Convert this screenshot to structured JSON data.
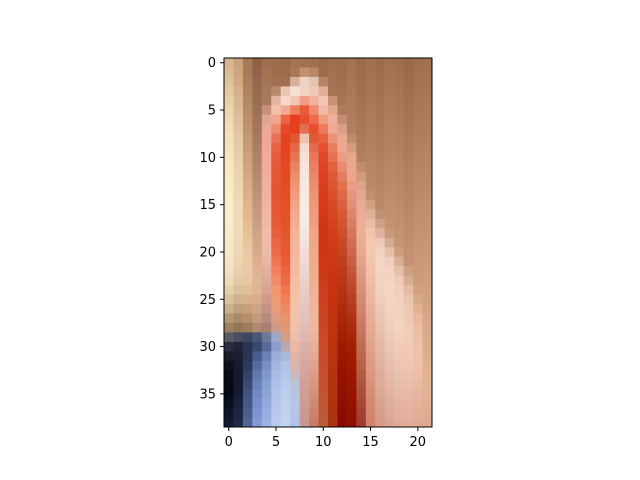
{
  "figure": {
    "background": "#ffffff"
  },
  "chart_data": {
    "type": "heatmap",
    "subtype": "image",
    "title": "",
    "xlabel": "",
    "ylabel": "",
    "x_ticks": [
      0,
      5,
      10,
      15,
      20
    ],
    "y_ticks": [
      0,
      5,
      10,
      15,
      20,
      25,
      30,
      35
    ],
    "xlim": [
      -0.5,
      21.5
    ],
    "ylim": [
      38.5,
      -0.5
    ],
    "y_axis_inverted": true,
    "image_columns": 22,
    "image_rows": 39,
    "pixel_rows_rgb": [
      [
        "#d9b690",
        "#cba27a",
        "#a97a56",
        "#8f6244",
        "#a0704e",
        "#9c6d4b",
        "#9a6a4a",
        "#a57452",
        "#a27250",
        "#a0704e",
        "#9a6a48",
        "#a06f4c",
        "#9d6c4a",
        "#a27251",
        "#9b6b49",
        "#a0704f",
        "#9c6c4a",
        "#a27250",
        "#9f6f4d",
        "#99694a",
        "#9e6e4d",
        "#a07050"
      ],
      [
        "#dcbb95",
        "#cea57e",
        "#aa7b57",
        "#92654a",
        "#a37352",
        "#9e6e4c",
        "#9b6b4b",
        "#a87756",
        "#c09070",
        "#b88868",
        "#9c6c4a",
        "#a27150",
        "#9f6e4c",
        "#a47453",
        "#9d6d4b",
        "#a27251",
        "#9e6e4c",
        "#a47452",
        "#a1714f",
        "#9b6b4c",
        "#a0704f",
        "#a27252"
      ],
      [
        "#e0c29c",
        "#d1aa84",
        "#ad7e5a",
        "#94684d",
        "#a57555",
        "#a17150",
        "#a07050",
        "#d8b09a",
        "#eed2c4",
        "#e6c2b0",
        "#b48464",
        "#a37352",
        "#a17050",
        "#a67655",
        "#9f6f4d",
        "#a47453",
        "#a0704e",
        "#a67654",
        "#a37351",
        "#9d6d4e",
        "#a27251",
        "#a47454"
      ],
      [
        "#e4c9a2",
        "#d5b08a",
        "#b0835e",
        "#976b4f",
        "#a77858",
        "#b88a6c",
        "#e9c4b4",
        "#f6dfd4",
        "#f3d2c4",
        "#f0c8b6",
        "#e2b09a",
        "#a57554",
        "#a37352",
        "#a87857",
        "#a1714f",
        "#a67655",
        "#a27250",
        "#a87856",
        "#a57553",
        "#9f6f50",
        "#a47453",
        "#a67656"
      ],
      [
        "#e8cfa8",
        "#d8b590",
        "#b48862",
        "#9a6e52",
        "#aa7b5b",
        "#e6b4a0",
        "#f8d8cc",
        "#f4c6b4",
        "#ee9e84",
        "#f2b29c",
        "#efc6b2",
        "#c89074",
        "#a57554",
        "#aa7a59",
        "#a37351",
        "#a87857",
        "#a47452",
        "#aa7a58",
        "#a77755",
        "#a17152",
        "#a67655",
        "#a87858"
      ],
      [
        "#ecd5ae",
        "#dbba94",
        "#b88c66",
        "#9d7155",
        "#c89078",
        "#f4c0ae",
        "#f2aa94",
        "#ee7e5c",
        "#ea5a3a",
        "#ee8a6e",
        "#f2b8a4",
        "#e4a88e",
        "#ad7b5a",
        "#ac7c5b",
        "#a57553",
        "#aa7a59",
        "#a67654",
        "#ac7c5a",
        "#a97957",
        "#a37354",
        "#a87857",
        "#aa7a5a"
      ],
      [
        "#efdab4",
        "#debf99",
        "#bc9069",
        "#a07458",
        "#e0a690",
        "#f2a690",
        "#ec6242",
        "#e8401e",
        "#e6502e",
        "#ea6a4a",
        "#f09a80",
        "#eeb09a",
        "#c48c70",
        "#ae7e5d",
        "#a77755",
        "#ac7c5b",
        "#a87856",
        "#ae7e5c",
        "#ab7b59",
        "#a57556",
        "#aa7a59",
        "#ac7c5c"
      ],
      [
        "#f1deb8",
        "#e1c49e",
        "#c0946c",
        "#a3775b",
        "#eca896",
        "#ee8a70",
        "#e84a28",
        "#e4421e",
        "#e27050",
        "#e84e2e",
        "#ec7a5c",
        "#efa892",
        "#dca088",
        "#b08060",
        "#a97957",
        "#ae7e5d",
        "#aa7a58",
        "#b0805e",
        "#ad7d5b",
        "#a77758",
        "#ac7c5b",
        "#ae7e5e"
      ],
      [
        "#f3e1bb",
        "#e4c8a2",
        "#c49870",
        "#a77b5e",
        "#f0a896",
        "#ec7054",
        "#e6441f",
        "#e25632",
        "#f0c2b0",
        "#e05a38",
        "#e8603e",
        "#ec927a",
        "#eaa890",
        "#c08a6c",
        "#ab7b59",
        "#b0805f",
        "#ac7c5a",
        "#b28260",
        "#af7f5d",
        "#a9795a",
        "#ae7e5d",
        "#b08060"
      ],
      [
        "#f4e4be",
        "#e6cca6",
        "#c89c74",
        "#ab7f62",
        "#f2a896",
        "#ea6244",
        "#e4441e",
        "#e46848",
        "#f6dad0",
        "#e46a4a",
        "#e45030",
        "#ea7e62",
        "#eea690",
        "#d49a80",
        "#ad7d5c",
        "#b28261",
        "#ae7e5c",
        "#b48462",
        "#b1815f",
        "#ab7b5c",
        "#b0805f",
        "#b28262"
      ],
      [
        "#f5e6c1",
        "#e8cfa9",
        "#cca078",
        "#af8366",
        "#f2aa98",
        "#e85a3c",
        "#e4461f",
        "#e87656",
        "#f8e2d8",
        "#e87858",
        "#e04828",
        "#e67050",
        "#ec9c84",
        "#e4a88c",
        "#b48064",
        "#b48463",
        "#b0805e",
        "#b68664",
        "#b38361",
        "#ad7d5e",
        "#b28261",
        "#b48464"
      ],
      [
        "#f6e8c4",
        "#ead2ac",
        "#d0a47c",
        "#b3876a",
        "#f2ac9a",
        "#e65838",
        "#e44820",
        "#ea8262",
        "#f8e4da",
        "#ea8060",
        "#de4424",
        "#e2623e",
        "#e88c72",
        "#eca690",
        "#c28c70",
        "#b68665",
        "#b28260",
        "#b88866",
        "#b58563",
        "#af7f60",
        "#b48463",
        "#b68666"
      ],
      [
        "#f7eac6",
        "#ecd4ae",
        "#d4a880",
        "#b78b6e",
        "#f2ae9c",
        "#e65636",
        "#e44a22",
        "#ec8c6c",
        "#f8e6dc",
        "#ec8868",
        "#dc4020",
        "#de5a36",
        "#e47e62",
        "#eca48c",
        "#d09a7e",
        "#b88867",
        "#b48462",
        "#ba8a68",
        "#b78765",
        "#b18162",
        "#b68665",
        "#b88868"
      ],
      [
        "#f8ebc8",
        "#eed6b0",
        "#d8ac84",
        "#bb8f72",
        "#f2b09e",
        "#e65434",
        "#e44c24",
        "#ee9476",
        "#f8e8de",
        "#ec8e6e",
        "#da3e1e",
        "#dc5430",
        "#e0724e",
        "#e89e86",
        "#dca28a",
        "#ba8a69",
        "#b68664",
        "#bc8c6a",
        "#b98967",
        "#b38364",
        "#b88867",
        "#ba8a6a"
      ],
      [
        "#f8ecc9",
        "#efd8b2",
        "#dcb088",
        "#bf9376",
        "#f2b2a0",
        "#e65434",
        "#e44e26",
        "#f09c7e",
        "#f8eae0",
        "#ee9474",
        "#d83c1c",
        "#da4e2a",
        "#dc6848",
        "#e4967c",
        "#e4a88e",
        "#c09070",
        "#b88866",
        "#be8e6c",
        "#bb8b69",
        "#b58566",
        "#ba8a69",
        "#bc8c6c"
      ],
      [
        "#f9edca",
        "#f0d9b4",
        "#e0b48c",
        "#c3977a",
        "#f2b4a2",
        "#e65636",
        "#e45028",
        "#f2a486",
        "#f8ece2",
        "#ee9878",
        "#d63a1a",
        "#d84a26",
        "#d86040",
        "#e08e74",
        "#e8aa92",
        "#d0a080",
        "#ba8a68",
        "#c0906e",
        "#bd8d6b",
        "#b78768",
        "#bc8c6b",
        "#be8e6e"
      ],
      [
        "#f9edca",
        "#f0dab5",
        "#e3b890",
        "#c79b7e",
        "#f2b6a4",
        "#e65838",
        "#e4522a",
        "#f4aa8c",
        "#f8ece4",
        "#f09c7c",
        "#d43818",
        "#d64622",
        "#d45a38",
        "#dc866c",
        "#eaac94",
        "#e0b094",
        "#c09070",
        "#c2926f",
        "#bf8f6d",
        "#b9896a",
        "#be8e6d",
        "#c09070"
      ],
      [
        "#f9eccb",
        "#f0dab6",
        "#e6bc94",
        "#cb9f82",
        "#f2b8a6",
        "#e85a3a",
        "#e4542c",
        "#f4ae92",
        "#f6eae2",
        "#f0a080",
        "#d23616",
        "#d4421e",
        "#d05432",
        "#d87e64",
        "#ecae96",
        "#ecbca2",
        "#cca088",
        "#c49471",
        "#c1916f",
        "#bb8b6c",
        "#c0906f",
        "#c29272"
      ],
      [
        "#f8ebca",
        "#efd9b6",
        "#e8c098",
        "#cfa386",
        "#f2baa8",
        "#ea5e3e",
        "#e4562e",
        "#f6b296",
        "#f4e6de",
        "#f0a484",
        "#d03414",
        "#d23e1a",
        "#cc4e2c",
        "#d4765c",
        "#ecae96",
        "#f2c4ac",
        "#deb4a0",
        "#c89a7a",
        "#c39371",
        "#bd8d6e",
        "#c29271",
        "#c49474"
      ],
      [
        "#f7eac9",
        "#eed8b5",
        "#eac49c",
        "#d3a78a",
        "#f0baa8",
        "#ec6444",
        "#e65830",
        "#f6b49a",
        "#f2e2da",
        "#f0a888",
        "#ce3414",
        "#d03c18",
        "#c84828",
        "#d06e54",
        "#eaac94",
        "#f4c8b0",
        "#eccab8",
        "#d4aa90",
        "#c69674",
        "#bf8f70",
        "#c49473",
        "#c69676"
      ],
      [
        "#f5e8c7",
        "#edd6b3",
        "#ecc8a0",
        "#d7ab8e",
        "#eebaa8",
        "#ee6c4c",
        "#e85a32",
        "#f6b69c",
        "#f0ded6",
        "#f0aa8a",
        "#ce3616",
        "#ce3a16",
        "#c44424",
        "#cc664c",
        "#e8a890",
        "#f4c8b0",
        "#f2d2c0",
        "#e4c0a8",
        "#ccA07c",
        "#c19172",
        "#c69675",
        "#c89878"
      ],
      [
        "#f3e5c4",
        "#ebd3b0",
        "#eccaa2",
        "#dbaf92",
        "#eab6a4",
        "#f07656",
        "#ea5e36",
        "#f6b89e",
        "#eedad2",
        "#f0ac8c",
        "#ce3818",
        "#cc3814",
        "#c04020",
        "#c85e44",
        "#e4a28a",
        "#f2c6ae",
        "#f4d4c2",
        "#f0cebc",
        "#d8b096",
        "#c39374",
        "#c89877",
        "#ca9a7a"
      ],
      [
        "#f0e1c0",
        "#e8d0ac",
        "#ebc9a2",
        "#deb396",
        "#e4b09e",
        "#f28060",
        "#ec643c",
        "#f6baa2",
        "#ecd6ce",
        "#f0ae8e",
        "#cc3a1a",
        "#ca3612",
        "#bc3c1c",
        "#c4563c",
        "#e09c84",
        "#f0c2aa",
        "#f4d4c2",
        "#f4d2c0",
        "#e6c0a8",
        "#cca080",
        "#ca9a79",
        "#cc9c7c"
      ],
      [
        "#ecdcba",
        "#e4cba6",
        "#e8c69e",
        "#dfb598",
        "#deaa98",
        "#f28a6a",
        "#ee6c44",
        "#f6bca4",
        "#ead2ca",
        "#f0b090",
        "#cc3c1c",
        "#c83410",
        "#b83818",
        "#c04e34",
        "#dc967e",
        "#eebea6",
        "#f4d2c0",
        "#f4d4c2",
        "#f0cab6",
        "#d8ae92",
        "#cc9c7b",
        "#ce9e7e"
      ],
      [
        "#e4d2ae",
        "#dcc19a",
        "#e2be96",
        "#ddb496",
        "#d8a292",
        "#f2946e",
        "#f07650",
        "#f6bea6",
        "#e8cec6",
        "#f0b294",
        "#cc3e1e",
        "#c63410",
        "#b43414",
        "#bc462c",
        "#d89078",
        "#ecbaa2",
        "#f2d0be",
        "#f4d4c2",
        "#f2cebc",
        "#e4bca4",
        "#d0a283",
        "#d0a080"
      ],
      [
        "#d8c49e",
        "#cfb38c",
        "#d8b08a",
        "#d8ae90",
        "#d09a8a",
        "#ee9a76",
        "#f08058",
        "#f6c0a8",
        "#e6cac2",
        "#f0b498",
        "#cc4020",
        "#c43410",
        "#b03010",
        "#b83e24",
        "#d48a72",
        "#eab69e",
        "#f0ccba",
        "#f4d4c2",
        "#f4d0be",
        "#eac4ae",
        "#d8aa8c",
        "#d2a282"
      ],
      [
        "#c8b08a",
        "#bea07a",
        "#c8a07a",
        "#cea488",
        "#c69284",
        "#e89c7c",
        "#ee8a62",
        "#f4c2aa",
        "#e4c6be",
        "#f0b69a",
        "#cc4222",
        "#c23410",
        "#ac2c0c",
        "#b4361c",
        "#d0846c",
        "#e8b29a",
        "#eec8b6",
        "#f2d2c0",
        "#f4d2c0",
        "#eec8b4",
        "#e0b294",
        "#d4a484"
      ],
      [
        "#b49874",
        "#a88c66",
        "#b48e6a",
        "#c09a7e",
        "#b88a7c",
        "#dc9c82",
        "#ea926a",
        "#f2c2ac",
        "#e2c2ba",
        "#f0b89c",
        "#cc4424",
        "#c03410",
        "#a82808",
        "#b03014",
        "#cc7e66",
        "#e6ae96",
        "#ecc4b2",
        "#f0d0be",
        "#f4d2c0",
        "#f0cab6",
        "#e6b89c",
        "#d6a686"
      ],
      [
        "#9c8060",
        "#927856",
        "#9c7c5c",
        "#ae8a70",
        "#a88076",
        "#cc9a88",
        "#e49872",
        "#f0c2ae",
        "#e0beb6",
        "#eeb89e",
        "#cc4626",
        "#be3410",
        "#a42404",
        "#ac2a0c",
        "#c87860",
        "#e4aa92",
        "#eac0ae",
        "#eecebc",
        "#f4d2c0",
        "#f2ccb8",
        "#eabea2",
        "#d8a888"
      ],
      [
        "#5a5a6a",
        "#4a4e62",
        "#3e4660",
        "#4a5678",
        "#6c7898",
        "#9ca8c6",
        "#d49c84",
        "#eebeaa",
        "#deb8b0",
        "#ecb49a",
        "#cc4828",
        "#bc3410",
        "#a02000",
        "#a82408",
        "#c4725a",
        "#e2a68e",
        "#e8bcaa",
        "#eccab8",
        "#f2d0be",
        "#f2ccb8",
        "#ecc0a6",
        "#daaa8a"
      ],
      [
        "#2a2e40",
        "#202638",
        "#2a3452",
        "#3a4870",
        "#586a9a",
        "#8a9cc8",
        "#b8a8b0",
        "#eab8a4",
        "#dab2aa",
        "#e8ae96",
        "#ca4a2a",
        "#ba3410",
        "#9c1c00",
        "#a42004",
        "#c06c54",
        "#e0a28a",
        "#e6b8a6",
        "#eac6b4",
        "#f0ccba",
        "#f2cab6",
        "#eec2a8",
        "#dcac8c"
      ],
      [
        "#181c2c",
        "#1a2034",
        "#2a3656",
        "#4a5c8c",
        "#6a80b4",
        "#9aaed8",
        "#a8b8dc",
        "#e4b4a4",
        "#d6aca4",
        "#e4a892",
        "#c84c2c",
        "#b83410",
        "#981800",
        "#a01c00",
        "#bc664e",
        "#de9e86",
        "#e4b4a2",
        "#e8c2b0",
        "#eec8b6",
        "#f0c8b4",
        "#eec2aa",
        "#deae8e"
      ],
      [
        "#0e1220",
        "#161c30",
        "#2e3a5c",
        "#566ca0",
        "#7890c4",
        "#a2b6e0",
        "#b0c2e6",
        "#d8b4aa",
        "#d4a8a0",
        "#e0a28c",
        "#c64e2e",
        "#b6340e",
        "#961600",
        "#9e1a00",
        "#b86048",
        "#dc9a82",
        "#e2b09e",
        "#e6beac",
        "#ecc4b2",
        "#eec6b2",
        "#eec2aa",
        "#e0b090"
      ],
      [
        "#080c18",
        "#141a2e",
        "#34426a",
        "#6278b0",
        "#8098cc",
        "#a8bce4",
        "#b4c6ea",
        "#c8bac0",
        "#d2a49c",
        "#dc9c86",
        "#c45030",
        "#b4340e",
        "#941400",
        "#9c1800",
        "#b45a42",
        "#da967e",
        "#e0ac9a",
        "#e4baa8",
        "#eac0ae",
        "#ecc2ae",
        "#ecbea6",
        "#e2b292"
      ],
      [
        "#060a16",
        "#121a30",
        "#3a4a76",
        "#6a82bc",
        "#889fd2",
        "#aec0e6",
        "#b8caec",
        "#bcc2d6",
        "#d0a098",
        "#d8967e",
        "#c25232",
        "#b2340e",
        "#921200",
        "#9a1600",
        "#b05440",
        "#d8927a",
        "#deaa96",
        "#e2b6a4",
        "#e8bcaa",
        "#eabeaa",
        "#eabaa2",
        "#e2b294"
      ],
      [
        "#060a18",
        "#141c34",
        "#40527e",
        "#7088c4",
        "#8ea4d6",
        "#b0c4e8",
        "#bccdee",
        "#b8c4e0",
        "#ce9e96",
        "#d49078",
        "#c05434",
        "#b0340e",
        "#901000",
        "#981400",
        "#ac4e3a",
        "#d68e76",
        "#dca692",
        "#e0b2a0",
        "#e6b8a6",
        "#e8baa6",
        "#e8b6a0",
        "#e2b294"
      ],
      [
        "#0a0e1e",
        "#18203a",
        "#465886",
        "#768ecc",
        "#94aadc",
        "#b4c6ea",
        "#becff0",
        "#b6c6e6",
        "#cc9c94",
        "#d08a72",
        "#be5636",
        "#ae340e",
        "#8e0e00",
        "#961200",
        "#a84836",
        "#d48a72",
        "#daa28e",
        "#deae9c",
        "#e4b4a2",
        "#e6b6a2",
        "#e6b29c",
        "#e0b092"
      ],
      [
        "#10142a",
        "#1c2440",
        "#4c5e8e",
        "#7c94d2",
        "#98aee0",
        "#b8c8ec",
        "#c0d0f0",
        "#b4c4e8",
        "#ca9a92",
        "#cc846c",
        "#bc5838",
        "#ac340e",
        "#8c0c00",
        "#941000",
        "#a44232",
        "#d2866e",
        "#d89e8a",
        "#dcaa98",
        "#e2b09e",
        "#e4b29e",
        "#e4ae98",
        "#deae90"
      ],
      [
        "#161a30",
        "#202846",
        "#526496",
        "#829ad6",
        "#9cb2e2",
        "#bacaee",
        "#c2d2f2",
        "#b2c2e8",
        "#c89890",
        "#c87e66",
        "#ba5a3a",
        "#aa340e",
        "#8a0a00",
        "#920e00",
        "#a03c2e",
        "#d0826a",
        "#d69a86",
        "#daa694",
        "#e0ac9a",
        "#e2ae9a",
        "#e2aa94",
        "#dcaa8e"
      ]
    ]
  }
}
